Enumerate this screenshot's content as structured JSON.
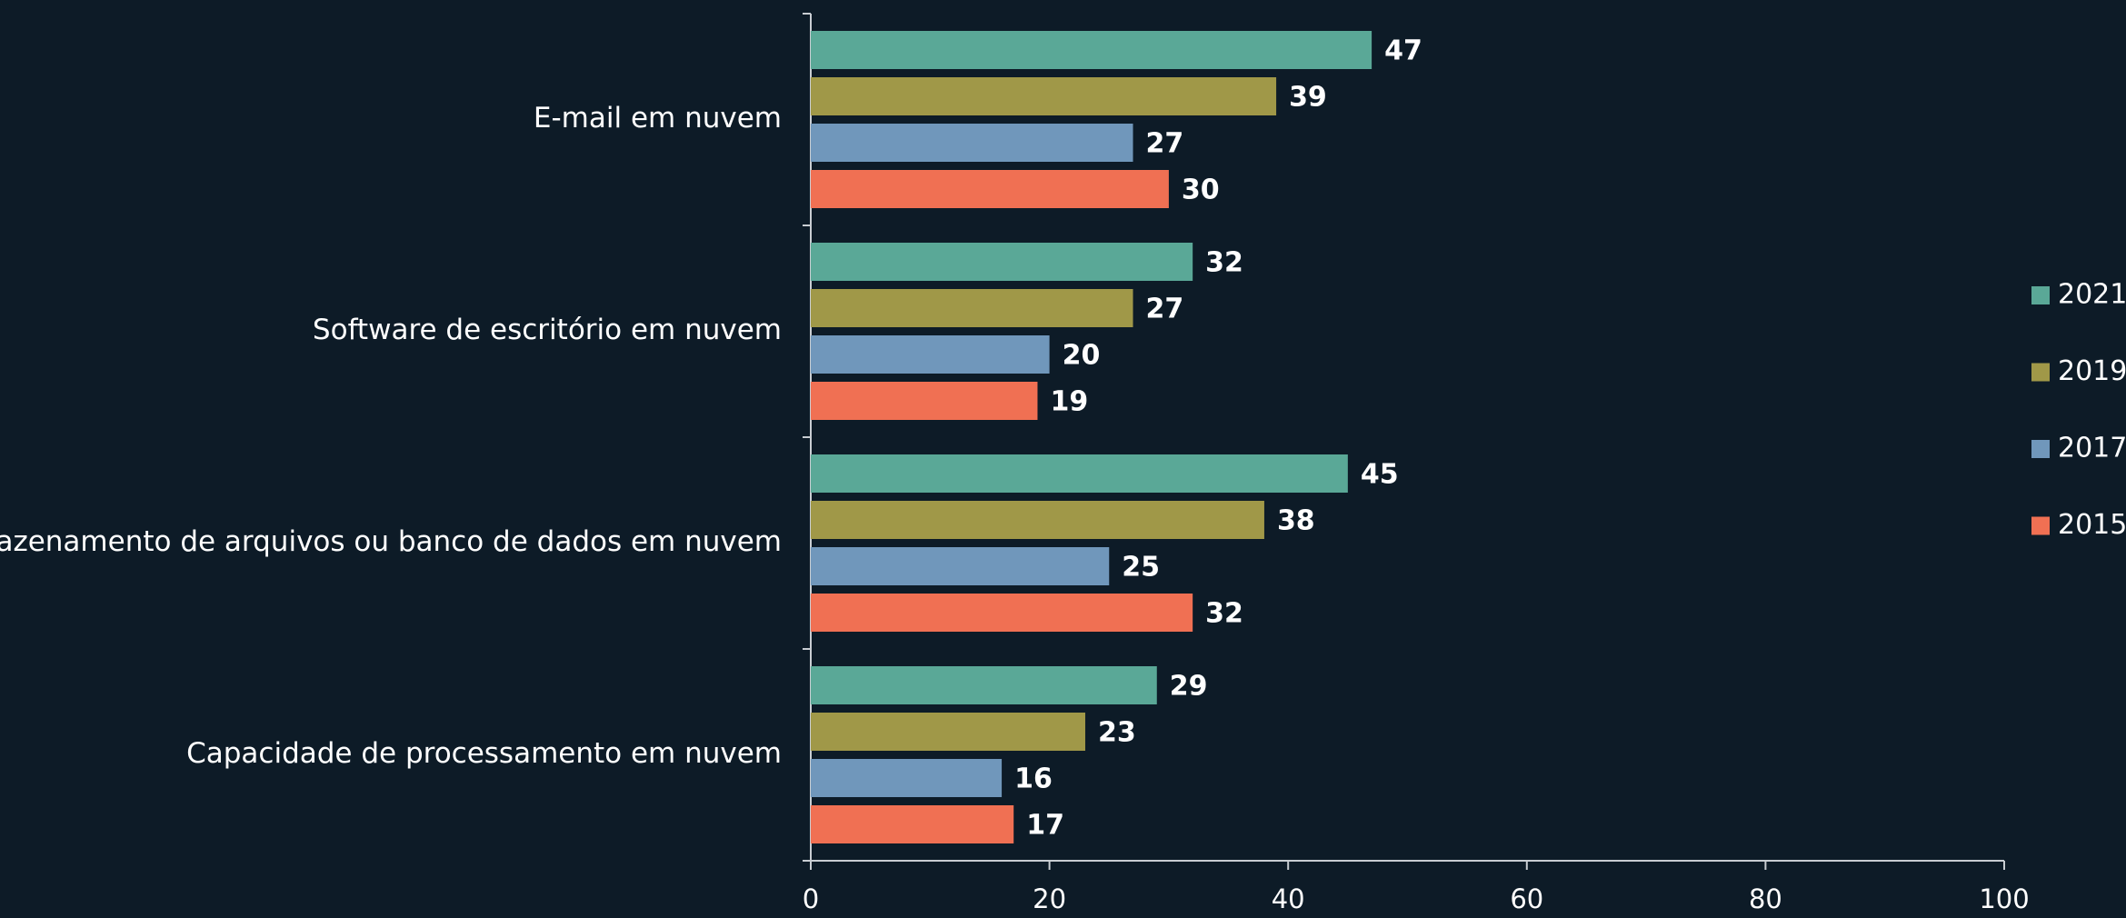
{
  "chart_data": {
    "type": "bar",
    "orientation": "horizontal",
    "categories": [
      "E-mail em nuvem",
      "Software de escritório em nuvem",
      "Armazenamento de arquivos ou banco de dados em nuvem",
      "Capacidade de processamento em nuvem"
    ],
    "series": [
      {
        "name": "2021",
        "color": "#5aa897",
        "values": [
          47,
          32,
          45,
          29
        ]
      },
      {
        "name": "2019",
        "color": "#a09848",
        "values": [
          39,
          27,
          38,
          23
        ]
      },
      {
        "name": "2017",
        "color": "#7097bb",
        "values": [
          27,
          20,
          25,
          16
        ]
      },
      {
        "name": "2015",
        "color": "#f07053",
        "values": [
          30,
          19,
          32,
          17
        ]
      }
    ],
    "xlim": [
      0,
      100
    ],
    "xticks": [
      0,
      20,
      40,
      60,
      80,
      100
    ],
    "legend": "right"
  }
}
